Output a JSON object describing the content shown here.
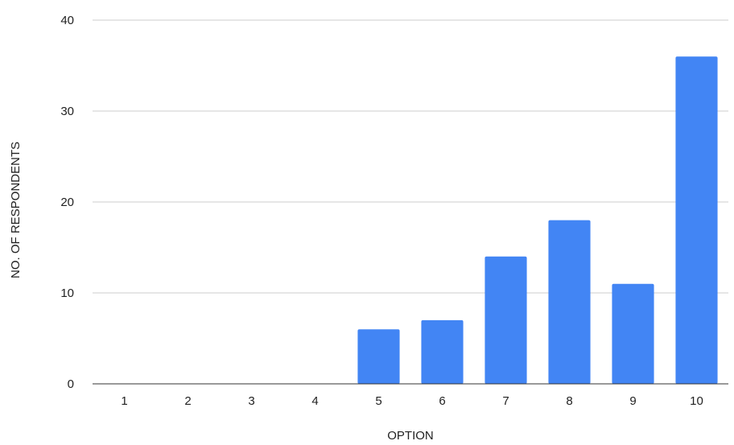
{
  "chart_data": {
    "type": "bar",
    "title": "",
    "xlabel": "OPTION",
    "ylabel": "NO. OF RESPONDENTS",
    "categories": [
      "1",
      "2",
      "3",
      "4",
      "5",
      "6",
      "7",
      "8",
      "9",
      "10"
    ],
    "values": [
      0,
      0,
      0,
      0,
      6,
      7,
      14,
      18,
      11,
      36
    ],
    "ylim": [
      0,
      40
    ],
    "yticks": [
      0,
      10,
      20,
      30,
      40
    ],
    "grid": true,
    "bar_color": "#4285f4"
  }
}
